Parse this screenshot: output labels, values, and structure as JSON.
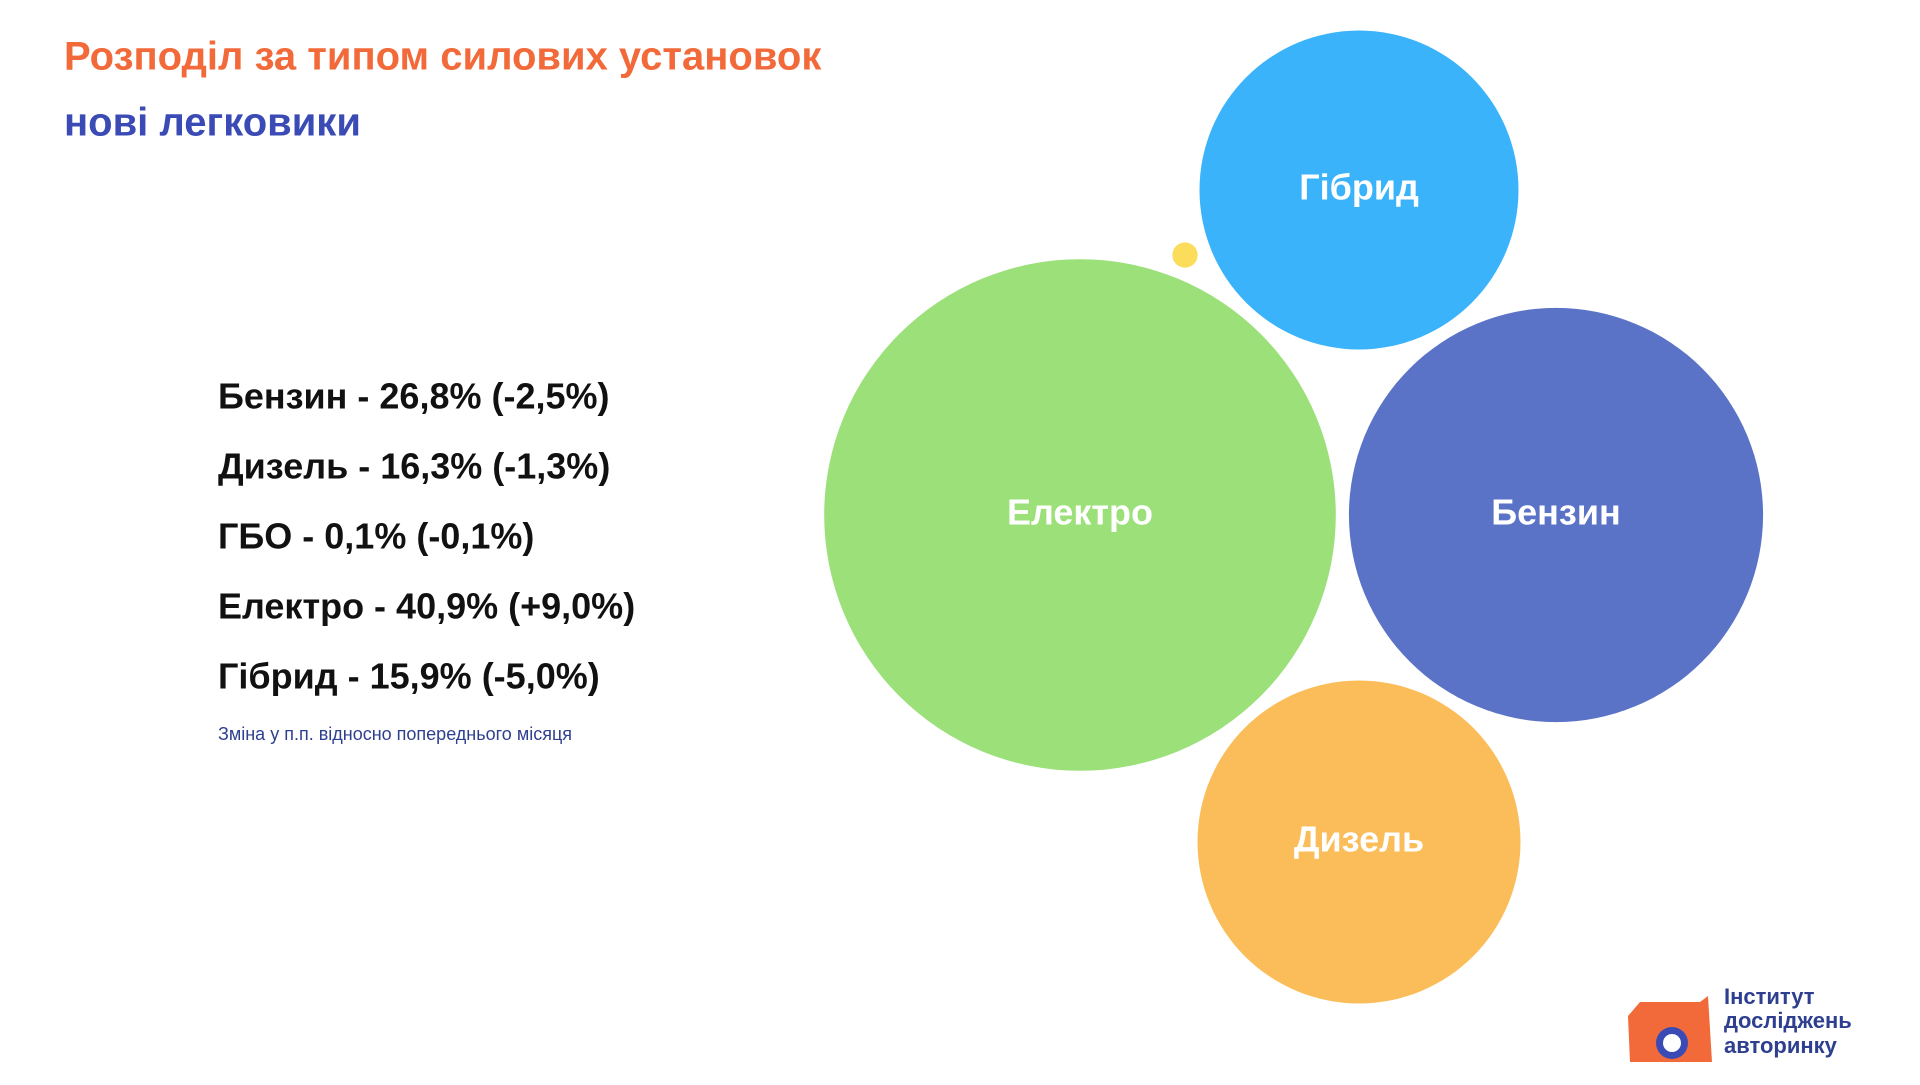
{
  "chart_data": {
    "type": "bubble",
    "title": "Розподіл за типом силових установок",
    "subtitle": "нові легковики",
    "categories": [
      "Бензин",
      "Дизель",
      "ГБО",
      "Електро",
      "Гібрид"
    ],
    "values": [
      26.8,
      16.3,
      0.1,
      40.9,
      15.9
    ],
    "value_labels": [
      "Бензин - 26,8% (-2,5%)",
      "Дизель - 16,3% (-1,3%)",
      "ГБО - 0,1% (-0,1%)",
      "Електро - 40,9% (+9,0%)",
      "Гібрид - 15,9% (-5,0%)"
    ],
    "colors": [
      "#5b73c7",
      "#fbbd5a",
      "#fbdc5b",
      "#9ce07a",
      "#3bb3fb"
    ],
    "note": "Зміна у п.п. відносно попереднього місяця"
  },
  "logo": {
    "lines": [
      "Інститут",
      "досліджень",
      "авторинку"
    ]
  }
}
